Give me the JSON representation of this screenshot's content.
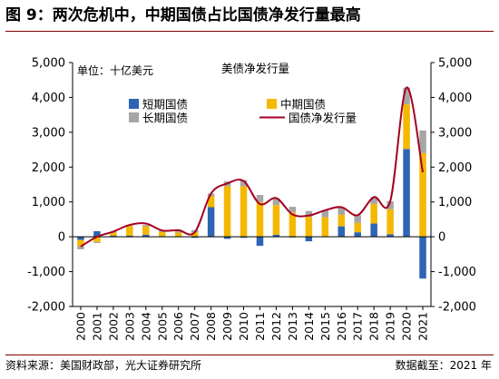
{
  "figure": {
    "title": "图 9：两次危机中，中期国债占比国债净发行量最高",
    "source": "资料来源：美国财政部，光大证券研究所",
    "cutoff": "数据截至：2021 年"
  },
  "chart_data": {
    "type": "bar",
    "stacked": true,
    "title": "美债净发行量",
    "unit_label": "单位：十亿美元",
    "xlabel": "",
    "ylabel": "",
    "ylim": [
      -2000,
      5000
    ],
    "yticks": [
      -2000,
      -1000,
      0,
      1000,
      2000,
      3000,
      4000,
      5000
    ],
    "ytick_labels": [
      "-2,000",
      "-1,000",
      "0",
      "1,000",
      "2,000",
      "3,000",
      "4,000",
      "5,000"
    ],
    "dual_y_axis": true,
    "grid": false,
    "legend_position": "center-top",
    "categories": [
      "2000",
      "2001",
      "2002",
      "2003",
      "2004",
      "2005",
      "2006",
      "2007",
      "2008",
      "2009",
      "2010",
      "2011",
      "2012",
      "2013",
      "2014",
      "2015",
      "2016",
      "2017",
      "2018",
      "2019",
      "2020",
      "2021"
    ],
    "series": [
      {
        "name": "短期国债",
        "kind": "bar",
        "color": "#2e64b4",
        "values": [
          -90,
          160,
          30,
          30,
          60,
          20,
          -10,
          -30,
          850,
          -60,
          -30,
          -260,
          60,
          -20,
          -130,
          10,
          300,
          130,
          380,
          70,
          2520,
          -1200
        ]
      },
      {
        "name": "中期国债",
        "kind": "bar",
        "color": "#f5b800",
        "values": [
          -180,
          -150,
          90,
          280,
          240,
          120,
          120,
          130,
          310,
          1450,
          1450,
          1000,
          850,
          700,
          570,
          550,
          330,
          270,
          560,
          720,
          1280,
          2400
        ]
      },
      {
        "name": "长期国债",
        "kind": "bar",
        "color": "#a6a6a6",
        "values": [
          -90,
          -30,
          30,
          30,
          40,
          40,
          80,
          60,
          80,
          140,
          180,
          200,
          200,
          160,
          170,
          200,
          220,
          220,
          200,
          230,
          480,
          650
        ]
      },
      {
        "name": "国债净发行量",
        "kind": "line",
        "color": "#a50021",
        "values": [
          -280,
          0,
          150,
          340,
          380,
          180,
          190,
          130,
          1240,
          1530,
          1600,
          940,
          1110,
          640,
          610,
          760,
          850,
          620,
          1140,
          1020,
          4280,
          1850
        ]
      }
    ]
  }
}
